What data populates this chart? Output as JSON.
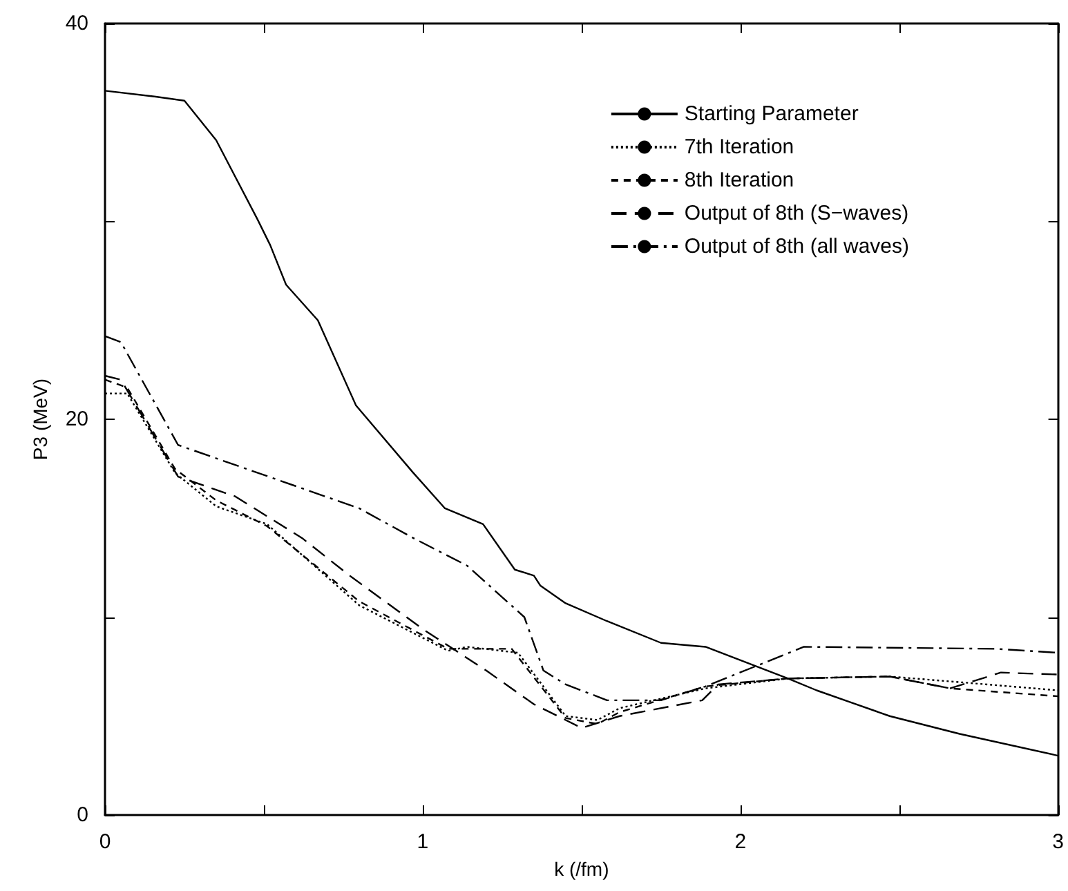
{
  "chart_data": {
    "type": "line",
    "xlabel": "k (/fm)",
    "ylabel": "P3 (MeV)",
    "xlim": [
      0,
      3
    ],
    "xticks": [
      0,
      {
        "value": 0.5,
        "label": null
      },
      1,
      {
        "value": 1.5,
        "label": null
      },
      2,
      {
        "value": 2.5,
        "label": null
      },
      3
    ],
    "ylim": [
      0,
      40
    ],
    "yticks": [
      0,
      {
        "value": 10,
        "label": null
      },
      20,
      {
        "value": 30,
        "label": null
      },
      40
    ],
    "grid": false,
    "legend": "top right",
    "marker": "none",
    "series": [
      {
        "name": "Starting Parameter",
        "color": "#000000",
        "line_style": "solid",
        "x": [
          0,
          0.16,
          0.25,
          0.35,
          0.48,
          0.52,
          0.57,
          0.67,
          0.79,
          0.97,
          1.07,
          1.19,
          1.29,
          1.35,
          1.37,
          1.45,
          1.58,
          1.75,
          1.89,
          2.15,
          2.24,
          2.47,
          2.69,
          3
        ],
        "values": [
          36.6,
          36.3,
          36.1,
          34.1,
          30.1,
          28.8,
          26.8,
          25.0,
          20.7,
          17.3,
          15.5,
          14.7,
          12.4,
          12.1,
          11.6,
          10.7,
          9.8,
          8.7,
          8.5,
          6.9,
          6.3,
          5.0,
          4.1,
          3.0
        ]
      },
      {
        "name": "7th Iteration",
        "color": "#000000",
        "line_style": "dotted",
        "x": [
          0,
          0.07,
          0.22,
          0.35,
          0.51,
          0.8,
          1.08,
          1.14,
          1.3,
          1.45,
          1.55,
          1.62,
          1.89,
          2.15,
          2.47,
          2.7,
          3
        ],
        "values": [
          21.3,
          21.3,
          17.3,
          15.6,
          14.7,
          10.6,
          8.3,
          8.5,
          8.2,
          5.0,
          4.8,
          5.4,
          6.4,
          6.9,
          7.0,
          6.7,
          6.3
        ]
      },
      {
        "name": "8th Iteration",
        "color": "#000000",
        "line_style": "dashed",
        "x": [
          0,
          0.07,
          0.22,
          0.35,
          0.51,
          0.8,
          1.08,
          1.28,
          1.45,
          1.55,
          1.62,
          1.89,
          2.15,
          2.47,
          2.66,
          3
        ],
        "values": [
          22.0,
          21.6,
          17.5,
          15.9,
          14.6,
          10.8,
          8.4,
          8.4,
          4.9,
          4.6,
          5.2,
          6.5,
          6.9,
          7.0,
          6.4,
          6.0
        ]
      },
      {
        "name": "Output of 8th (S−waves)",
        "color": "#000000",
        "line_style": "longdashed",
        "x": [
          0,
          0.05,
          0.23,
          0.41,
          0.62,
          0.77,
          1.0,
          1.2,
          1.35,
          1.5,
          1.62,
          1.88,
          1.93,
          2.15,
          2.47,
          2.66,
          2.82,
          3
        ],
        "values": [
          22.2,
          22.0,
          17.1,
          16.1,
          14.0,
          12.1,
          9.4,
          7.3,
          5.6,
          4.4,
          5.0,
          5.8,
          6.6,
          6.9,
          7.0,
          6.4,
          7.2,
          7.1
        ]
      },
      {
        "name": "Output of 8th (all waves)",
        "color": "#000000",
        "line_style": "dashdot",
        "x": [
          0,
          0.05,
          0.23,
          0.8,
          0.97,
          1.14,
          1.32,
          1.38,
          1.45,
          1.58,
          1.75,
          1.89,
          2.2,
          2.8,
          3
        ],
        "values": [
          24.2,
          23.9,
          18.7,
          15.5,
          14.0,
          12.6,
          10.0,
          7.3,
          6.6,
          5.8,
          5.8,
          6.5,
          8.5,
          8.4,
          8.2
        ]
      }
    ]
  }
}
